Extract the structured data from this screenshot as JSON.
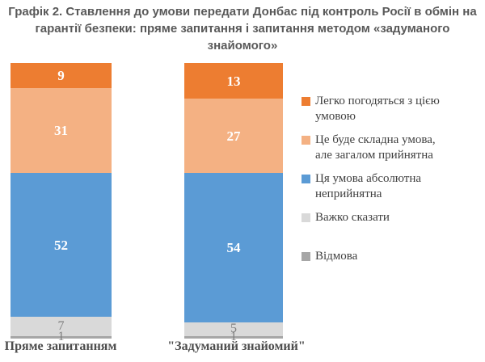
{
  "title": "Графік 2. Ставлення до умови передати Донбас під контроль Росії в обмін на гарантії безпеки: пряме запитання і запитання методом «задуманого знайомого»",
  "chart_data": {
    "type": "bar",
    "stacked": true,
    "orientation": "vertical",
    "title": "Графік 2. Ставлення до умови передати Донбас під контроль Росії в обмін на гарантії безпеки: пряме запитання і запитання методом «задуманого знайомого»",
    "categories": [
      "Пряме запитанням",
      "\"Задуманий знайомий\""
    ],
    "series": [
      {
        "name": "Легко погодяться з цією умовою",
        "color": "#ED7D31",
        "label_color": "#FFFFFF",
        "values": [
          9,
          13
        ]
      },
      {
        "name": "Це буде складна умова, але загалом прийнятна",
        "color": "#F4B183",
        "label_color": "#FFFFFF",
        "values": [
          31,
          27
        ]
      },
      {
        "name": "Ця умова абсолютна неприйнятна",
        "color": "#5B9BD5",
        "label_color": "#FFFFFF",
        "values": [
          52,
          54
        ]
      },
      {
        "name": "Важко сказати",
        "color": "#D9D9D9",
        "label_color": "#7F7F7F",
        "values": [
          7,
          5
        ]
      },
      {
        "name": "Відмова",
        "color": "#A6A6A6",
        "label_color": "#7F7F7F",
        "values": [
          1,
          1
        ]
      }
    ],
    "ylim": [
      0,
      100
    ],
    "grid": false,
    "legend_position": "right"
  },
  "legend": {
    "items": [
      {
        "lines": [
          "Легко погодяться з цією",
          "умовою"
        ]
      },
      {
        "lines": [
          "Це буде складна умова,",
          "але загалом прийнятна"
        ]
      },
      {
        "lines": [
          "Ця умова абсолютна",
          "неприйнятна"
        ]
      },
      {
        "lines": [
          "Важко сказати"
        ]
      },
      {
        "lines": [
          "Відмова"
        ]
      }
    ]
  },
  "colors": {
    "title_text": "#595959",
    "category_text": "#4d4d4d",
    "legend_text": "#404040",
    "background": "#ffffff"
  }
}
